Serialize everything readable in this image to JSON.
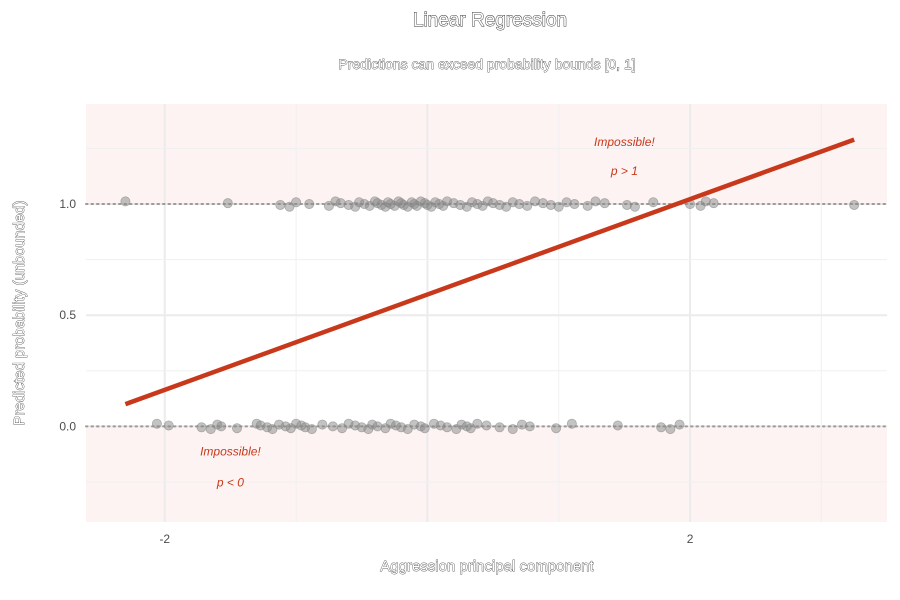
{
  "chart_data": {
    "type": "scatter",
    "title": "Linear Regression",
    "subtitle": "Predictions can exceed probability bounds [0, 1]",
    "xlabel": "Aggression principal component",
    "ylabel": "Predicted probability (unbounded)",
    "xlim": [
      -2.6,
      3.5
    ],
    "ylim": [
      -0.43,
      1.45
    ],
    "x_ticks": [
      -2,
      2
    ],
    "x_tick_labels": [
      "-2",
      "2"
    ],
    "y_ticks": [
      0.0,
      0.5,
      1.0
    ],
    "y_tick_labels": [
      "0.0",
      "0.5",
      "1.0"
    ],
    "grid": true,
    "colors": {
      "line": "#c8391b",
      "point": "#888888",
      "impossible_region": "#fdf3f3",
      "bound_line": "#9a9a9a",
      "annotation": "#c8391b"
    },
    "fit_line": {
      "x": [
        -2.3,
        3.25
      ],
      "y": [
        0.1,
        1.29
      ]
    },
    "bounds": [
      0,
      1
    ],
    "annotations": [
      {
        "text": "Impossible!",
        "x": 1.5,
        "y": 1.26
      },
      {
        "text": "p > 1",
        "x": 1.5,
        "y": 1.13
      },
      {
        "text": "Impossible!",
        "x": -1.5,
        "y": -0.13
      },
      {
        "text": "p < 0",
        "x": -1.5,
        "y": -0.27
      }
    ],
    "series": [
      {
        "y": 1,
        "x": [
          -2.3,
          -1.52,
          -1.12,
          -1.05,
          -1.0,
          -0.9,
          -0.75,
          -0.7,
          -0.66,
          -0.6,
          -0.55,
          -0.52,
          -0.48,
          -0.44,
          -0.4,
          -0.38,
          -0.35,
          -0.32,
          -0.3,
          -0.28,
          -0.25,
          -0.22,
          -0.2,
          -0.18,
          -0.15,
          -0.12,
          -0.1,
          -0.08,
          -0.05,
          -0.02,
          0.0,
          0.03,
          0.06,
          0.09,
          0.12,
          0.15,
          0.2,
          0.25,
          0.3,
          0.34,
          0.38,
          0.42,
          0.46,
          0.5,
          0.55,
          0.6,
          0.65,
          0.7,
          0.76,
          0.82,
          0.88,
          0.94,
          1.0,
          1.06,
          1.12,
          1.22,
          1.28,
          1.35,
          1.52,
          1.58,
          1.72,
          2.0,
          2.08,
          2.12,
          2.18,
          3.25
        ]
      },
      {
        "y": 0,
        "x": [
          -2.06,
          -1.97,
          -1.72,
          -1.65,
          -1.6,
          -1.57,
          -1.45,
          -1.3,
          -1.27,
          -1.22,
          -1.18,
          -1.13,
          -1.08,
          -1.04,
          -1.0,
          -0.96,
          -0.93,
          -0.88,
          -0.8,
          -0.72,
          -0.65,
          -0.6,
          -0.55,
          -0.5,
          -0.45,
          -0.42,
          -0.38,
          -0.32,
          -0.28,
          -0.24,
          -0.2,
          -0.15,
          -0.1,
          -0.05,
          -0.02,
          0.05,
          0.1,
          0.15,
          0.22,
          0.26,
          0.3,
          0.33,
          0.38,
          0.45,
          0.55,
          0.65,
          0.72,
          0.78,
          0.98,
          1.1,
          1.45,
          1.78,
          1.85,
          1.92
        ]
      }
    ]
  }
}
